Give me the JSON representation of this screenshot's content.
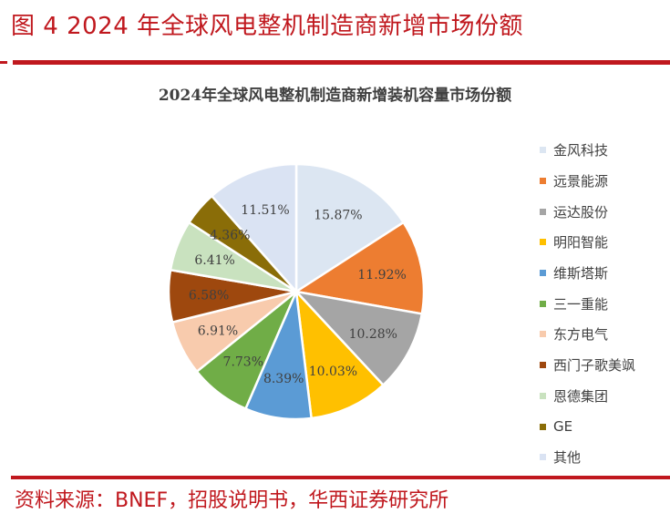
{
  "figure_title": "图 4 2024 年全球风电整机制造商新增市场份额",
  "source_text": "资料来源：BNEF，招股说明书，华西证券研究所",
  "chart_data": {
    "type": "pie",
    "title": "2024年全球风电整机制造商新增装机容量市场份额",
    "categories": [
      "金风科技",
      "远景能源",
      "运达股份",
      "明阳智能",
      "维斯塔斯",
      "三一重能",
      "东方电气",
      "西门子歌美飒",
      "恩德集团",
      "GE",
      "其他"
    ],
    "values": [
      15.87,
      11.92,
      10.28,
      10.03,
      8.39,
      7.73,
      6.91,
      6.58,
      6.41,
      4.36,
      11.51
    ],
    "labels": [
      "15.87%",
      "11.92%",
      "10.28%",
      "10.03%",
      "8.39%",
      "7.73%",
      "6.91%",
      "6.58%",
      "6.41%",
      "4.36%",
      "11.51%"
    ],
    "colors": [
      "#dce6f2",
      "#ed7d31",
      "#a5a5a5",
      "#ffc000",
      "#5b9bd5",
      "#70ad47",
      "#f8cbad",
      "#9e480e",
      "#c9e2bf",
      "#8a6d08",
      "#dae3f3"
    ],
    "start": "12 o'clock",
    "direction": "clockwise",
    "legend_position": "right"
  }
}
